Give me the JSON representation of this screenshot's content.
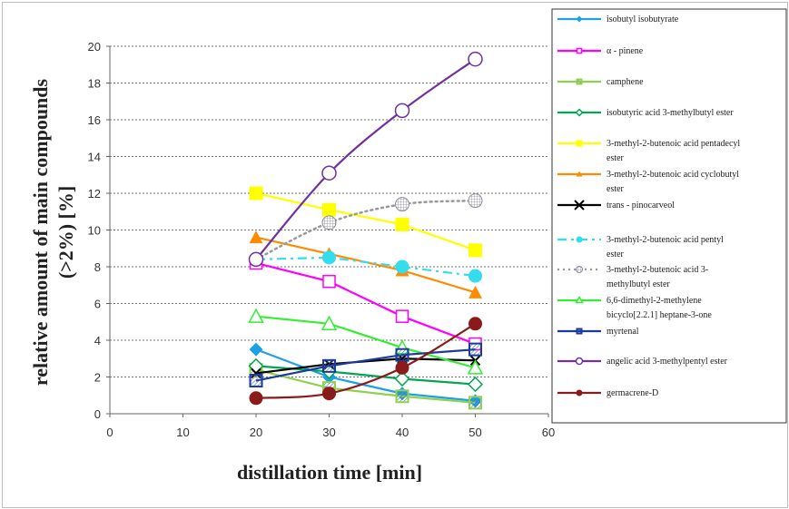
{
  "chart_data": {
    "type": "line",
    "title": "",
    "xlabel": "distillation time [min]",
    "ylabel_line1": "relative amount of main compounds",
    "ylabel_line2": "(>2%) [%]",
    "xlim": [
      0,
      60
    ],
    "ylim": [
      0,
      20
    ],
    "xticks": [
      0,
      10,
      20,
      30,
      40,
      50,
      60
    ],
    "yticks": [
      0,
      2,
      4,
      6,
      8,
      10,
      12,
      14,
      16,
      18,
      20
    ],
    "grid": "horizontal dashed",
    "legend_position": "right",
    "x": [
      20,
      30,
      40,
      50
    ],
    "series": [
      {
        "name": "isobutyl isobutyrate",
        "lines": [
          "isobutyl isobutyrate"
        ],
        "values": [
          3.5,
          2.0,
          1.1,
          0.7
        ],
        "color": "#1ea0e6",
        "marker": "diamond",
        "dash": "",
        "curved": false
      },
      {
        "name": "α - pinene",
        "lines": [
          "α - pinene"
        ],
        "values": [
          8.2,
          7.2,
          5.3,
          3.8
        ],
        "color": "#ff00ff",
        "marker": "square-open",
        "dash": "",
        "curved": false
      },
      {
        "name": "camphene",
        "lines": [
          "camphene"
        ],
        "values": [
          2.4,
          1.4,
          0.95,
          0.6
        ],
        "color": "#8fd14f",
        "marker": "square-hatch",
        "dash": "",
        "curved": false
      },
      {
        "name": "isobutyric acid 3-methylbutyl ester",
        "lines": [
          "isobutyric acid 3-methylbutyl ester"
        ],
        "values": [
          2.6,
          2.3,
          1.9,
          1.6
        ],
        "color": "#00a651",
        "marker": "diamond-open",
        "dash": "",
        "curved": false
      },
      {
        "name": "3-methyl-2-butenoic acid pentadecyl ester",
        "lines": [
          "3-methyl-2-butenoic acid pentadecyl",
          "ester"
        ],
        "values": [
          12.0,
          11.1,
          10.3,
          8.9
        ],
        "color": "#ffff00",
        "marker": "square",
        "dash": "",
        "curved": false
      },
      {
        "name": "3-methyl-2-butenoic acid cyclobutyl ester",
        "lines": [
          "3-methyl-2-butenoic acid cyclobutyl",
          "ester"
        ],
        "values": [
          9.6,
          8.7,
          7.8,
          6.6
        ],
        "color": "#ff8c00",
        "marker": "triangle",
        "dash": "",
        "curved": false
      },
      {
        "name": "trans - pinocarveol",
        "lines": [
          "trans - pinocarveol"
        ],
        "values": [
          2.2,
          2.7,
          3.0,
          2.9
        ],
        "color": "#000000",
        "marker": "x",
        "dash": "",
        "curved": false
      },
      {
        "name": "3-methyl-2-butenoic acid pentyl ester",
        "lines": [
          "3-methyl-2-butenoic acid pentyl",
          "ester"
        ],
        "values": [
          8.4,
          8.5,
          8.0,
          7.5
        ],
        "color": "#33ddee",
        "marker": "circle",
        "dash": "10,5,3,5",
        "curved": false
      },
      {
        "name": "3-methyl-2-butenoic acid 3-methylbutyl ester",
        "lines": [
          "3-methyl-2-butenoic acid 3-",
          "methylbutyl ester"
        ],
        "values": [
          8.4,
          10.4,
          11.4,
          11.6
        ],
        "color": "#999999",
        "marker": "circle-grid",
        "dash": "2,4",
        "curved": true
      },
      {
        "name": "6,6-dimethyl-2-methylene bicyclo[2.2.1] heptane-3-one",
        "lines": [
          "6,6-dimethyl-2-methylene",
          "bicyclo[2.2.1] heptane-3-one"
        ],
        "values": [
          5.3,
          4.9,
          3.6,
          2.5
        ],
        "color": "#33ee33",
        "marker": "triangle-open",
        "dash": "",
        "curved": false
      },
      {
        "name": "myrtenal",
        "lines": [
          "myrtenal"
        ],
        "values": [
          1.8,
          2.6,
          3.2,
          3.5
        ],
        "color": "#1a3aa0",
        "marker": "square-open-hatch",
        "dash": "",
        "curved": false
      },
      {
        "name": "angelic acid 3-methylpentyl ester",
        "lines": [
          "angelic acid 3-methylpentyl ester"
        ],
        "values": [
          8.4,
          13.1,
          16.5,
          19.3
        ],
        "color": "#7030a0",
        "marker": "circle-open",
        "dash": "",
        "curved": true
      },
      {
        "name": "germacrene-D",
        "lines": [
          "germacrene-D"
        ],
        "values": [
          0.85,
          1.1,
          2.5,
          4.9
        ],
        "color": "#8b1a1a",
        "marker": "circle-filled",
        "dash": "",
        "curved": true
      }
    ]
  }
}
